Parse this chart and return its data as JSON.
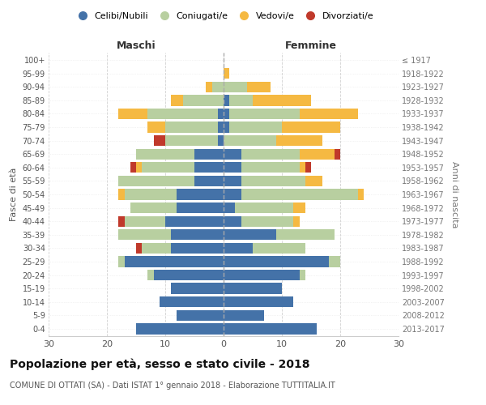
{
  "age_groups": [
    "0-4",
    "5-9",
    "10-14",
    "15-19",
    "20-24",
    "25-29",
    "30-34",
    "35-39",
    "40-44",
    "45-49",
    "50-54",
    "55-59",
    "60-64",
    "65-69",
    "70-74",
    "75-79",
    "80-84",
    "85-89",
    "90-94",
    "95-99",
    "100+"
  ],
  "birth_years": [
    "2013-2017",
    "2008-2012",
    "2003-2007",
    "1998-2002",
    "1993-1997",
    "1988-1992",
    "1983-1987",
    "1978-1982",
    "1973-1977",
    "1968-1972",
    "1963-1967",
    "1958-1962",
    "1953-1957",
    "1948-1952",
    "1943-1947",
    "1938-1942",
    "1933-1937",
    "1928-1932",
    "1923-1927",
    "1918-1922",
    "≤ 1917"
  ],
  "males": {
    "celibi": [
      15,
      8,
      11,
      9,
      12,
      17,
      9,
      9,
      10,
      8,
      8,
      5,
      5,
      5,
      1,
      1,
      1,
      0,
      0,
      0,
      0
    ],
    "coniugati": [
      0,
      0,
      0,
      0,
      1,
      1,
      5,
      9,
      7,
      8,
      9,
      13,
      9,
      10,
      9,
      9,
      12,
      7,
      2,
      0,
      0
    ],
    "vedovi": [
      0,
      0,
      0,
      0,
      0,
      0,
      0,
      0,
      0,
      0,
      1,
      0,
      1,
      0,
      0,
      3,
      5,
      2,
      1,
      0,
      0
    ],
    "divorziati": [
      0,
      0,
      0,
      0,
      0,
      0,
      1,
      0,
      1,
      0,
      0,
      0,
      1,
      0,
      2,
      0,
      0,
      0,
      0,
      0,
      0
    ]
  },
  "females": {
    "nubili": [
      16,
      7,
      12,
      10,
      13,
      18,
      5,
      9,
      3,
      2,
      3,
      3,
      3,
      3,
      0,
      1,
      1,
      1,
      0,
      0,
      0
    ],
    "coniugate": [
      0,
      0,
      0,
      0,
      1,
      2,
      9,
      10,
      9,
      10,
      20,
      11,
      10,
      10,
      9,
      9,
      12,
      4,
      4,
      0,
      0
    ],
    "vedove": [
      0,
      0,
      0,
      0,
      0,
      0,
      0,
      0,
      1,
      2,
      1,
      3,
      1,
      6,
      8,
      10,
      10,
      10,
      4,
      1,
      0
    ],
    "divorziate": [
      0,
      0,
      0,
      0,
      0,
      0,
      0,
      0,
      0,
      0,
      0,
      0,
      1,
      1,
      0,
      0,
      0,
      0,
      0,
      0,
      0
    ]
  },
  "colors": {
    "celibi": "#4472a8",
    "coniugati": "#b8cfa0",
    "vedovi": "#f5b942",
    "divorziati": "#c0392b"
  },
  "xlim": 30,
  "title": "Popolazione per età, sesso e stato civile - 2018",
  "subtitle": "COMUNE DI OTTATI (SA) - Dati ISTAT 1° gennaio 2018 - Elaborazione TUTTITALIA.IT",
  "ylabel_left": "Fasce di età",
  "ylabel_right": "Anni di nascita",
  "xlabel_left": "Maschi",
  "xlabel_right": "Femmine"
}
